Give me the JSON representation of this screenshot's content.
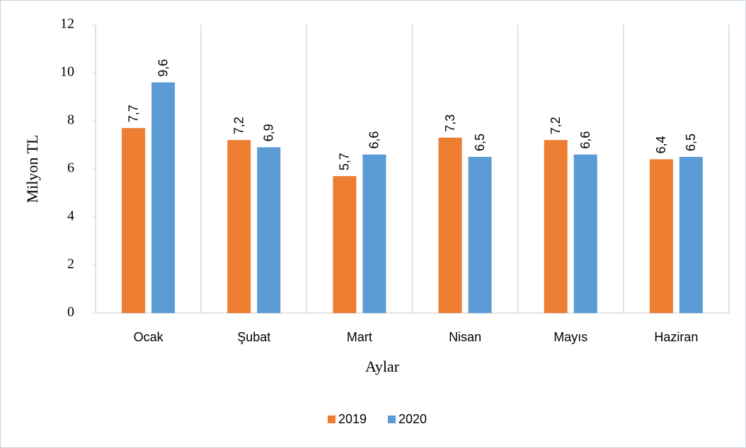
{
  "chart_data": {
    "type": "bar",
    "categories": [
      "Ocak",
      "Şubat",
      "Mart",
      "Nisan",
      "Mayıs",
      "Haziran"
    ],
    "series": [
      {
        "name": "2019",
        "color": "#ed7d31",
        "values": [
          7.7,
          7.2,
          5.7,
          7.3,
          7.2,
          6.4
        ],
        "value_labels": [
          "7,7",
          "7,2",
          "5,7",
          "7,3",
          "7,2",
          "6,4"
        ]
      },
      {
        "name": "2020",
        "color": "#5b9bd5",
        "values": [
          9.6,
          6.9,
          6.6,
          6.5,
          6.6,
          6.5
        ],
        "value_labels": [
          "9,6",
          "6,9",
          "6,6",
          "6,5",
          "6,6",
          "6,5"
        ]
      }
    ],
    "ylim": [
      0,
      12
    ],
    "yticks": [
      0,
      2,
      4,
      6,
      8,
      10,
      12
    ],
    "x_label": "Aylar",
    "y_label": "Milyon TL",
    "legend": "bottom"
  }
}
